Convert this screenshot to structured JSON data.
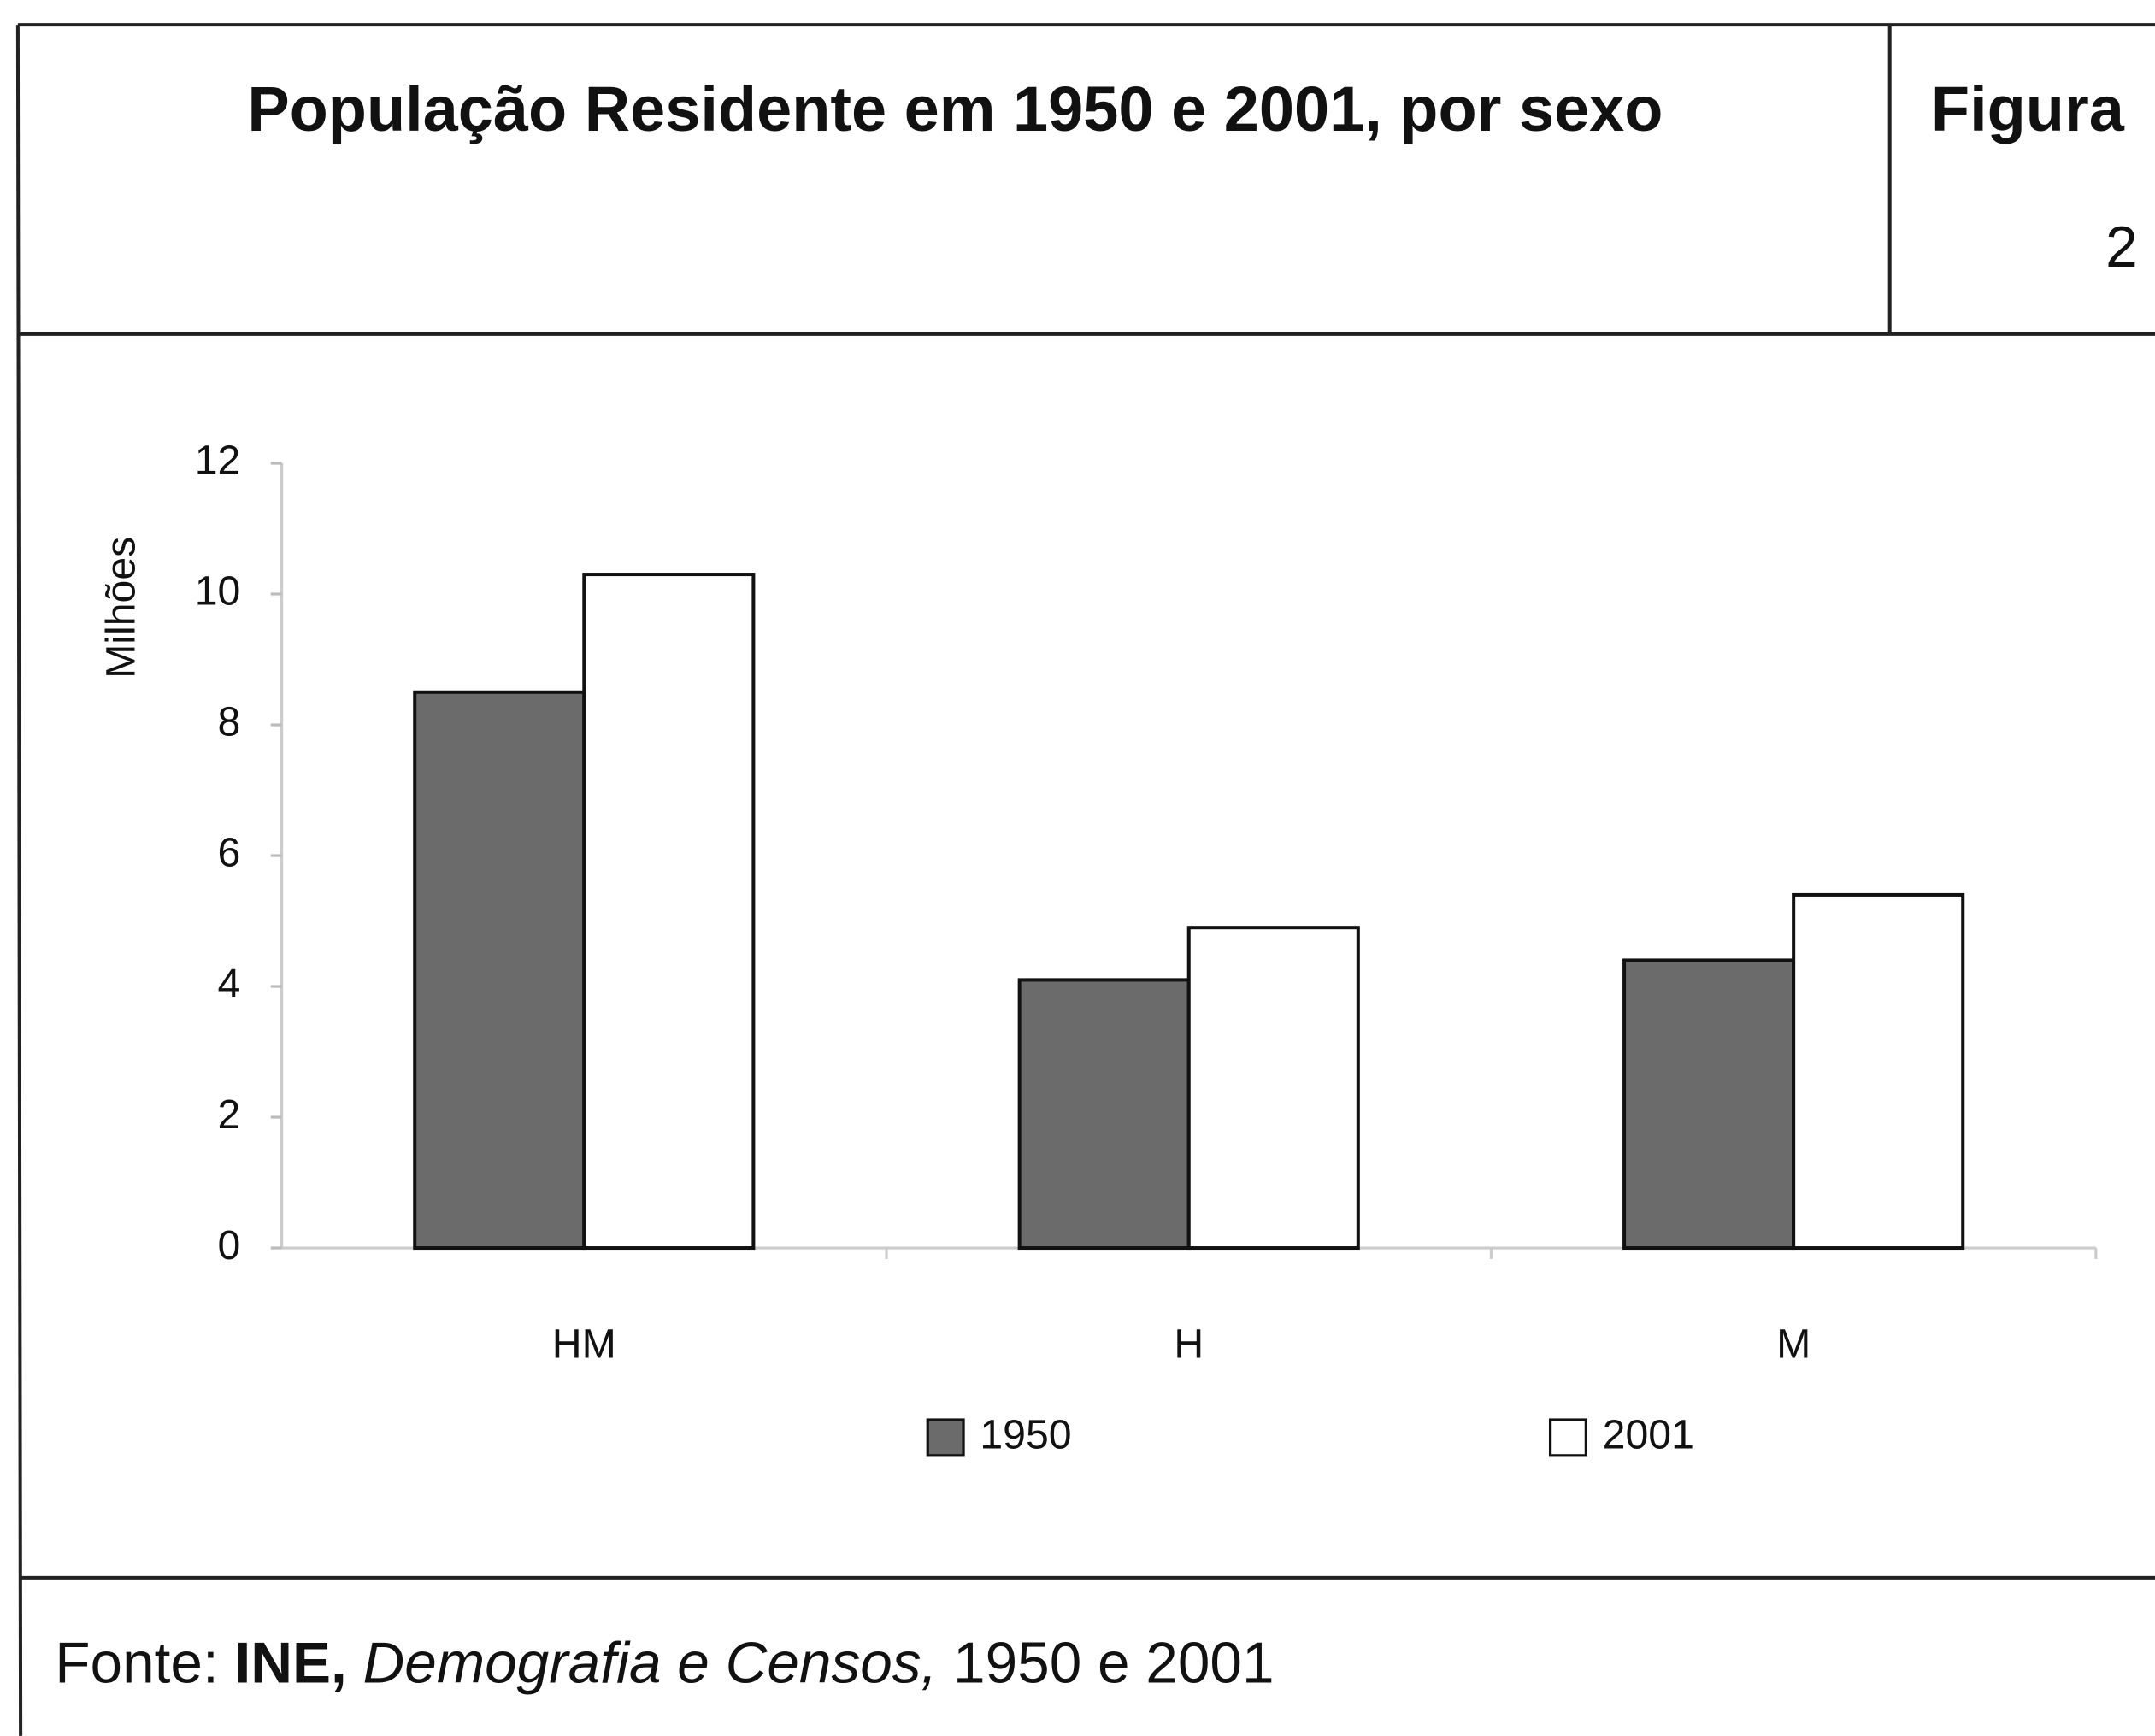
{
  "chart_data": {
    "type": "bar",
    "title": "População Residente em 1950 e 2001, por sexo",
    "figure_label": "Figura",
    "figure_number": "2",
    "y_label": "Milhões",
    "categories": [
      "HM",
      "H",
      "M"
    ],
    "series": [
      {
        "name": "1950",
        "color": "#6b6b6b",
        "values": [
          8.5,
          4.1,
          4.4
        ]
      },
      {
        "name": "2001",
        "color": "#ffffff",
        "values": [
          10.3,
          4.9,
          5.4
        ]
      }
    ],
    "ylim": [
      0,
      12
    ],
    "yticks": [
      0,
      2,
      4,
      6,
      8,
      10,
      12
    ],
    "grid": false,
    "legend": "bottom",
    "source": {
      "prefix": "Fonte:",
      "agency": "INE,",
      "publication": "Demografia e Censos,",
      "years": "1950 e 2001"
    }
  }
}
